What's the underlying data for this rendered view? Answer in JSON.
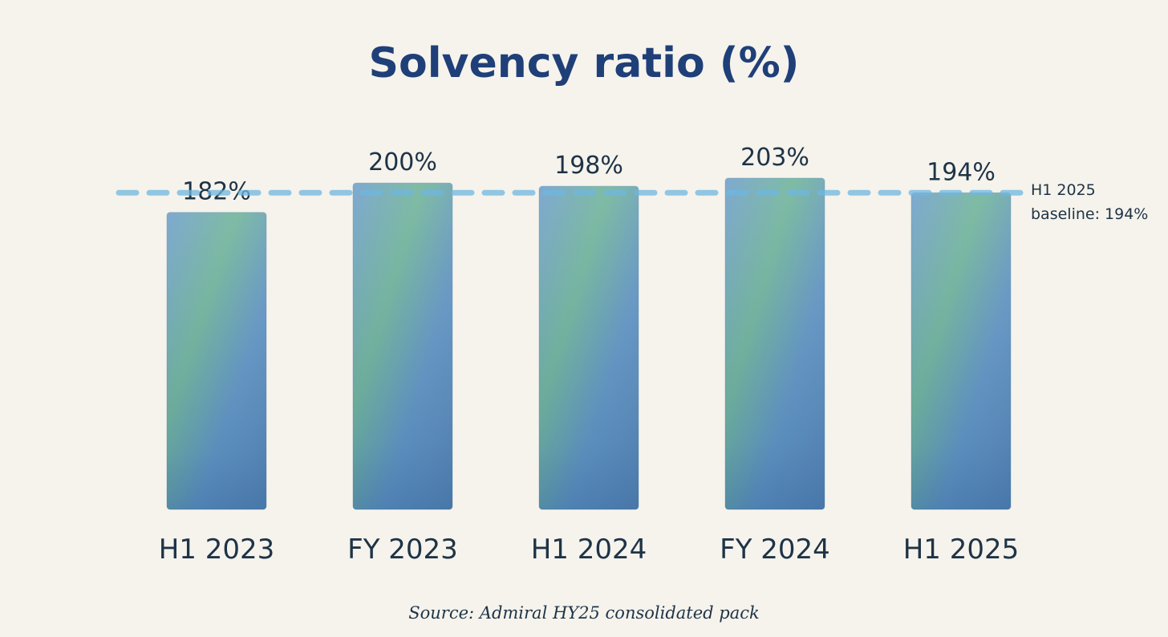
{
  "chart_data": {
    "type": "bar",
    "title": "Solvency ratio (%)",
    "categories": [
      "H1 2023",
      "FY 2023",
      "H1 2024",
      "FY 2024",
      "H1 2025"
    ],
    "values": [
      182,
      200,
      198,
      203,
      194
    ],
    "value_labels": [
      "182%",
      "200%",
      "198%",
      "203%",
      "194%"
    ],
    "xlabel": "",
    "ylabel": "",
    "ylim": [
      0,
      203
    ],
    "grid": false,
    "reference_line": {
      "value": 194,
      "label_line1": "H1 2025",
      "label_line2": "baseline: 194%"
    },
    "source": "Source: Admiral HY25 consolidated pack"
  },
  "colors": {
    "background": "#f5f3ec",
    "title": "#1f3f78",
    "text": "#1e3346",
    "bar_blue": "#4f88bf",
    "bar_green": "#5aaa8c",
    "bar_deep": "#2f5e9a",
    "reference_line": "#6fb7e0"
  }
}
